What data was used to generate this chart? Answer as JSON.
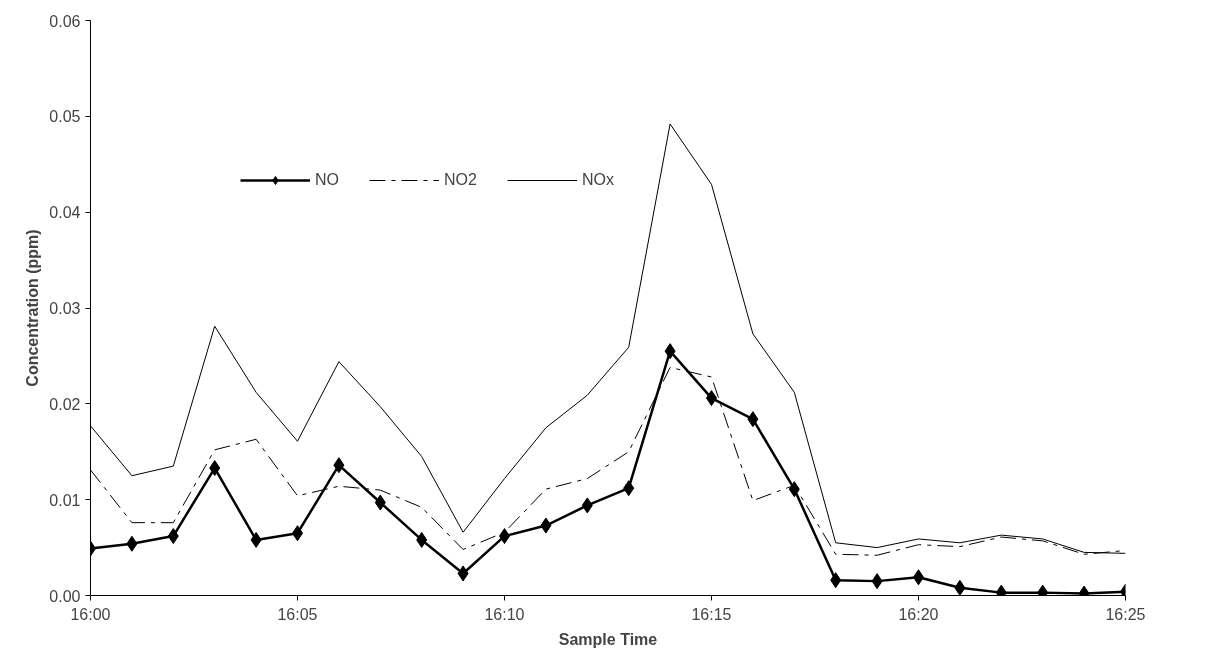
{
  "chart_data": {
    "type": "line",
    "xlabel": "Sample Time",
    "ylabel": "Concentration (ppm)",
    "x": [
      16.0,
      16.016667,
      16.033333,
      16.05,
      16.066667,
      16.083333,
      16.1,
      16.116667,
      16.133333,
      16.15,
      16.166667,
      16.183333,
      16.2,
      16.216667,
      16.233333,
      16.25,
      16.266667,
      16.283333,
      16.3,
      16.316667,
      16.333333,
      16.35,
      16.366667,
      16.383333,
      16.4,
      16.416667
    ],
    "xlim": [
      16.0,
      16.416667
    ],
    "xticks": [
      {
        "value": 16.0,
        "label": "16:00"
      },
      {
        "value": 16.083333,
        "label": "16:05"
      },
      {
        "value": 16.166667,
        "label": "16:10"
      },
      {
        "value": 16.25,
        "label": "16:15"
      },
      {
        "value": 16.333333,
        "label": "16:20"
      },
      {
        "value": 16.416667,
        "label": "16:25"
      }
    ],
    "ylim": [
      0,
      0.06
    ],
    "yticks": [
      {
        "value": 0,
        "label": "0.00"
      },
      {
        "value": 0.01,
        "label": "0.01"
      },
      {
        "value": 0.02,
        "label": "0.02"
      },
      {
        "value": 0.03,
        "label": "0.03"
      },
      {
        "value": 0.04,
        "label": "0.04"
      },
      {
        "value": 0.05,
        "label": "0.05"
      },
      {
        "value": 0.06,
        "label": "0.06"
      }
    ],
    "grid": false,
    "legend": "top left",
    "series": [
      {
        "name": "NO",
        "color": "#000000",
        "marker": "diamond",
        "line_style": "solid",
        "values": [
          0.0049,
          0.0054,
          0.0062,
          0.0133,
          0.0058,
          0.0065,
          0.0136,
          0.0097,
          0.0058,
          0.0023,
          0.0062,
          0.0073,
          0.0094,
          0.0112,
          0.0255,
          0.0206,
          0.0184,
          0.0111,
          0.0016,
          0.0015,
          0.0019,
          0.0008,
          0.0003,
          0.0003,
          0.0002,
          0.0004
        ]
      },
      {
        "name": "NO2",
        "color": "#000000",
        "marker": "none",
        "line_style": "dashed",
        "values": [
          0.0131,
          0.0076,
          0.0076,
          0.0152,
          0.0163,
          0.0104,
          0.0114,
          0.011,
          0.0092,
          0.0048,
          0.0066,
          0.0111,
          0.0122,
          0.015,
          0.0238,
          0.0228,
          0.0099,
          0.0115,
          0.0043,
          0.0042,
          0.0053,
          0.0051,
          0.0061,
          0.0057,
          0.0043,
          0.0047
        ]
      },
      {
        "name": "NOx",
        "color": "#000000",
        "marker": "none",
        "line_style": "solid",
        "values": [
          0.0177,
          0.0125,
          0.0135,
          0.0281,
          0.0212,
          0.0161,
          0.0244,
          0.0197,
          0.0145,
          0.0066,
          0.0122,
          0.0175,
          0.0209,
          0.0259,
          0.0492,
          0.0429,
          0.0273,
          0.0212,
          0.0055,
          0.005,
          0.0059,
          0.0055,
          0.0063,
          0.0059,
          0.0045,
          0.0044
        ]
      }
    ]
  }
}
